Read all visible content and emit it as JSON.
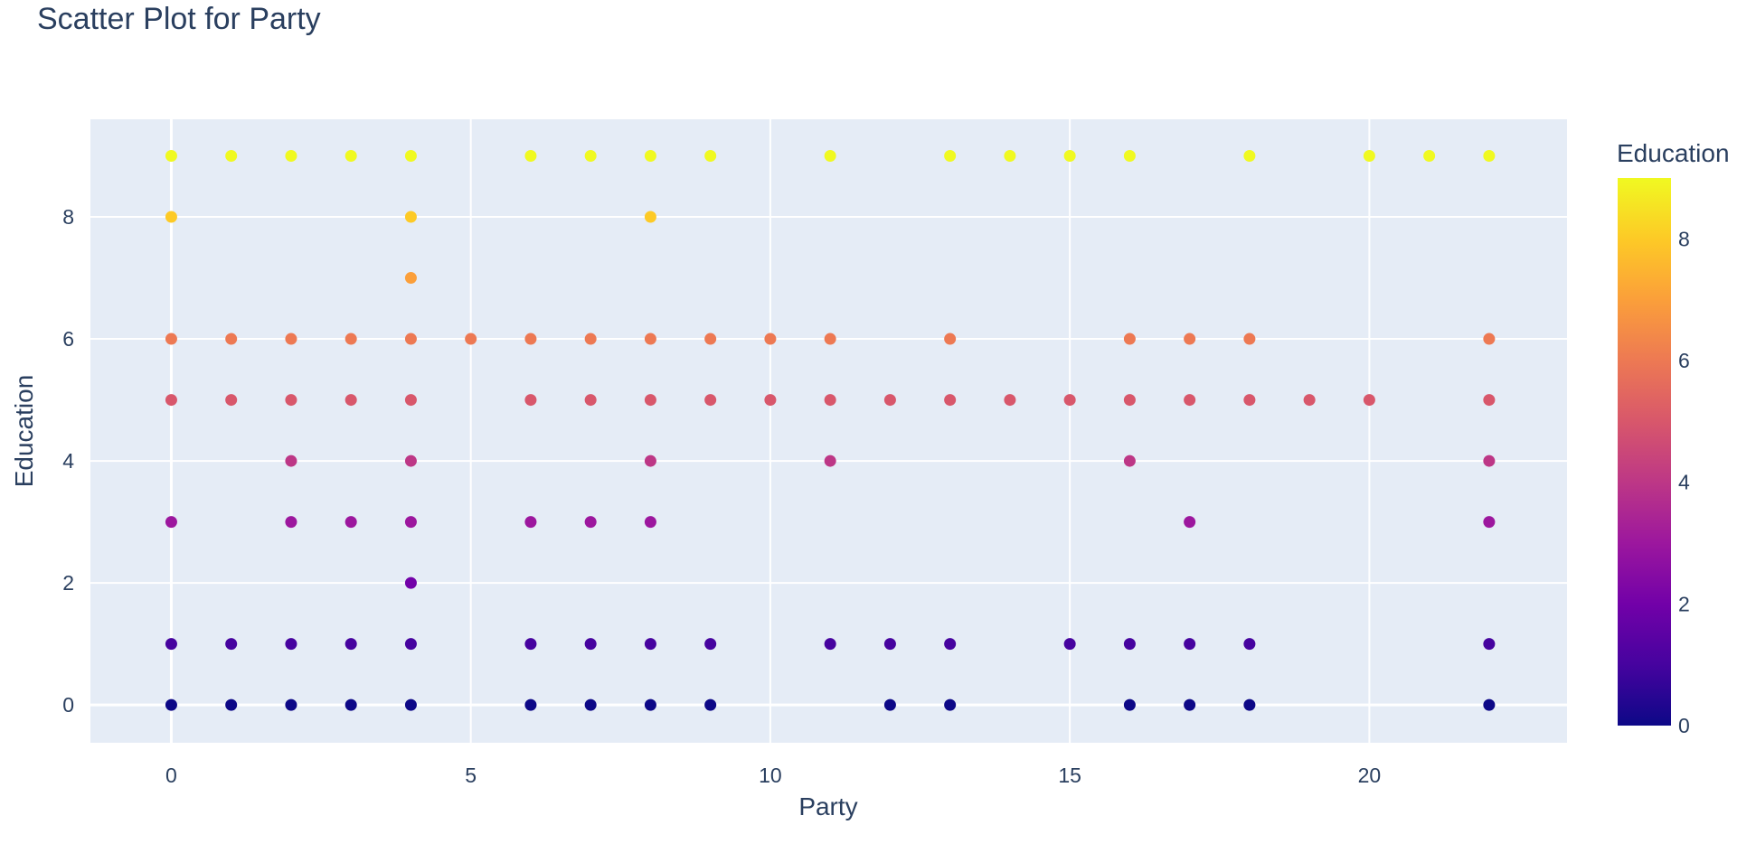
{
  "chart_data": {
    "type": "scatter",
    "title": "Scatter Plot for Party",
    "xlabel": "Party",
    "ylabel": "Education",
    "xlim": [
      -1.35,
      23.3
    ],
    "ylim": [
      -0.62,
      9.6
    ],
    "xticks": [
      0,
      5,
      10,
      15,
      20
    ],
    "yticks": [
      0,
      2,
      4,
      6,
      8
    ],
    "grid": true,
    "legend": "none",
    "colorbar": {
      "title": "Education",
      "range": [
        0,
        9
      ],
      "ticks": [
        0,
        2,
        4,
        6,
        8
      ],
      "colorscale": [
        "#0d0887",
        "#46039f",
        "#7201a8",
        "#9c179e",
        "#bd3786",
        "#d8576b",
        "#ed7953",
        "#fb9f3a",
        "#fdca26",
        "#f0f921"
      ]
    },
    "colors": {
      "plot_bg": "#e5ecf6",
      "grid": "#ffffff",
      "text": "#2a3f5f"
    },
    "points": [
      [
        0,
        9
      ],
      [
        1,
        9
      ],
      [
        2,
        9
      ],
      [
        3,
        9
      ],
      [
        4,
        9
      ],
      [
        6,
        9
      ],
      [
        7,
        9
      ],
      [
        8,
        9
      ],
      [
        9,
        9
      ],
      [
        11,
        9
      ],
      [
        13,
        9
      ],
      [
        14,
        9
      ],
      [
        15,
        9
      ],
      [
        16,
        9
      ],
      [
        18,
        9
      ],
      [
        20,
        9
      ],
      [
        21,
        9
      ],
      [
        22,
        9
      ],
      [
        0,
        8
      ],
      [
        4,
        8
      ],
      [
        8,
        8
      ],
      [
        4,
        7
      ],
      [
        0,
        6
      ],
      [
        1,
        6
      ],
      [
        2,
        6
      ],
      [
        3,
        6
      ],
      [
        4,
        6
      ],
      [
        5,
        6
      ],
      [
        6,
        6
      ],
      [
        7,
        6
      ],
      [
        8,
        6
      ],
      [
        9,
        6
      ],
      [
        10,
        6
      ],
      [
        11,
        6
      ],
      [
        13,
        6
      ],
      [
        16,
        6
      ],
      [
        17,
        6
      ],
      [
        18,
        6
      ],
      [
        22,
        6
      ],
      [
        0,
        5
      ],
      [
        1,
        5
      ],
      [
        2,
        5
      ],
      [
        3,
        5
      ],
      [
        4,
        5
      ],
      [
        6,
        5
      ],
      [
        7,
        5
      ],
      [
        8,
        5
      ],
      [
        9,
        5
      ],
      [
        10,
        5
      ],
      [
        11,
        5
      ],
      [
        12,
        5
      ],
      [
        13,
        5
      ],
      [
        14,
        5
      ],
      [
        15,
        5
      ],
      [
        16,
        5
      ],
      [
        17,
        5
      ],
      [
        18,
        5
      ],
      [
        19,
        5
      ],
      [
        20,
        5
      ],
      [
        22,
        5
      ],
      [
        2,
        4
      ],
      [
        4,
        4
      ],
      [
        8,
        4
      ],
      [
        11,
        4
      ],
      [
        16,
        4
      ],
      [
        22,
        4
      ],
      [
        0,
        3
      ],
      [
        2,
        3
      ],
      [
        3,
        3
      ],
      [
        4,
        3
      ],
      [
        6,
        3
      ],
      [
        7,
        3
      ],
      [
        8,
        3
      ],
      [
        17,
        3
      ],
      [
        22,
        3
      ],
      [
        4,
        2
      ],
      [
        0,
        1
      ],
      [
        1,
        1
      ],
      [
        2,
        1
      ],
      [
        3,
        1
      ],
      [
        4,
        1
      ],
      [
        6,
        1
      ],
      [
        7,
        1
      ],
      [
        8,
        1
      ],
      [
        9,
        1
      ],
      [
        11,
        1
      ],
      [
        12,
        1
      ],
      [
        13,
        1
      ],
      [
        15,
        1
      ],
      [
        16,
        1
      ],
      [
        17,
        1
      ],
      [
        18,
        1
      ],
      [
        22,
        1
      ],
      [
        0,
        0
      ],
      [
        1,
        0
      ],
      [
        2,
        0
      ],
      [
        3,
        0
      ],
      [
        4,
        0
      ],
      [
        6,
        0
      ],
      [
        7,
        0
      ],
      [
        8,
        0
      ],
      [
        9,
        0
      ],
      [
        12,
        0
      ],
      [
        13,
        0
      ],
      [
        16,
        0
      ],
      [
        17,
        0
      ],
      [
        18,
        0
      ],
      [
        22,
        0
      ]
    ]
  }
}
